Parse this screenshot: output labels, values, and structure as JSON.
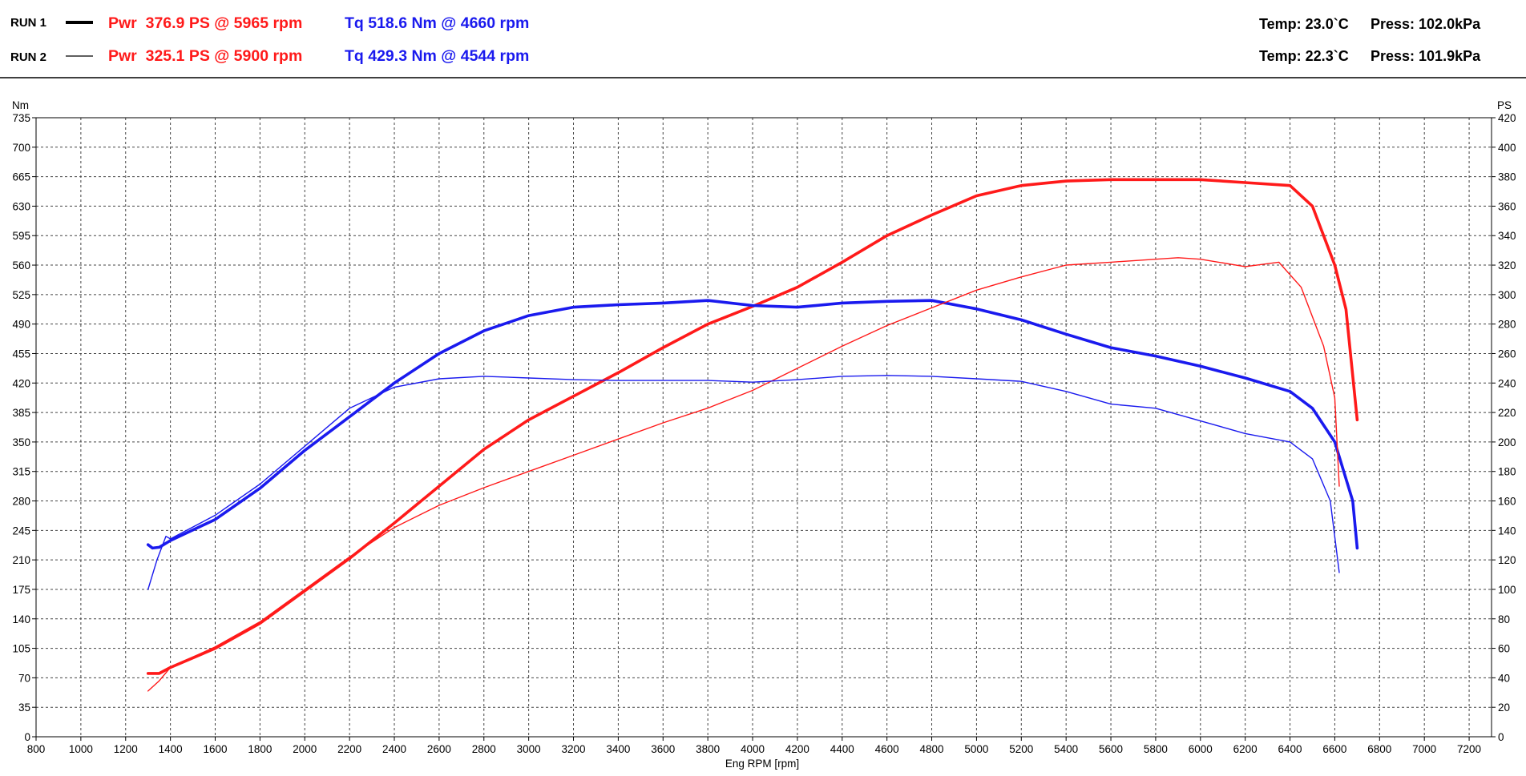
{
  "header": {
    "runs": [
      {
        "label": "RUN 1",
        "power_text": "Pwr  376.9 PS @ 5965 rpm",
        "torque_text": "Tq 518.6 Nm @ 4660 rpm",
        "temp_text": "Temp: 23.0`C",
        "press_text": "Press: 102.0kPa"
      },
      {
        "label": "RUN 2",
        "power_text": "Pwr  325.1 PS @ 5900 rpm",
        "torque_text": "Tq 429.3 Nm @ 4544 rpm",
        "temp_text": "Temp: 22.3`C",
        "press_text": "Press: 101.9kPa"
      }
    ]
  },
  "chart_data": {
    "type": "line",
    "xlabel": "Eng RPM [rpm]",
    "ylabel_left": "Nm",
    "ylabel_right": "PS",
    "xlim": [
      800,
      7300
    ],
    "ylim_left": [
      0,
      735
    ],
    "ylim_right": [
      0,
      420
    ],
    "x_ticks": [
      800,
      1000,
      1200,
      1400,
      1600,
      1800,
      2000,
      2200,
      2400,
      2600,
      2800,
      3000,
      3200,
      3400,
      3600,
      3800,
      4000,
      4200,
      4400,
      4600,
      4800,
      5000,
      5200,
      5400,
      5600,
      5800,
      6000,
      6200,
      6400,
      6600,
      6800,
      7000,
      7200
    ],
    "y_ticks_left": [
      0,
      35,
      70,
      105,
      140,
      175,
      210,
      245,
      280,
      315,
      350,
      385,
      420,
      455,
      490,
      525,
      560,
      595,
      630,
      665,
      700,
      735
    ],
    "y_ticks_right": [
      0,
      20,
      40,
      60,
      80,
      100,
      120,
      140,
      160,
      180,
      200,
      220,
      240,
      260,
      280,
      300,
      320,
      340,
      360,
      380,
      400,
      420
    ],
    "grid": true,
    "colors": {
      "power": "#ff1a1a",
      "torque": "#1a1aee"
    },
    "series": [
      {
        "name": "RUN 1",
        "quantity": "power",
        "axis": "right",
        "line": "thick",
        "points": [
          [
            1300,
            43
          ],
          [
            1350,
            43
          ],
          [
            1400,
            47
          ],
          [
            1600,
            60
          ],
          [
            1800,
            77
          ],
          [
            2000,
            99
          ],
          [
            2200,
            121
          ],
          [
            2400,
            145
          ],
          [
            2600,
            170
          ],
          [
            2800,
            195
          ],
          [
            3000,
            215
          ],
          [
            3200,
            231
          ],
          [
            3400,
            247
          ],
          [
            3600,
            264
          ],
          [
            3800,
            280
          ],
          [
            4000,
            292
          ],
          [
            4200,
            305
          ],
          [
            4400,
            322
          ],
          [
            4600,
            340
          ],
          [
            4800,
            354
          ],
          [
            5000,
            367
          ],
          [
            5200,
            374
          ],
          [
            5400,
            377
          ],
          [
            5600,
            378
          ],
          [
            5800,
            378
          ],
          [
            6000,
            378
          ],
          [
            6200,
            376
          ],
          [
            6400,
            374
          ],
          [
            6500,
            360
          ],
          [
            6600,
            320
          ],
          [
            6650,
            290
          ],
          [
            6700,
            215
          ]
        ]
      },
      {
        "name": "RUN 1",
        "quantity": "torque",
        "axis": "left",
        "line": "thick",
        "points": [
          [
            1300,
            228
          ],
          [
            1320,
            224
          ],
          [
            1350,
            225
          ],
          [
            1400,
            233
          ],
          [
            1600,
            258
          ],
          [
            1800,
            295
          ],
          [
            2000,
            340
          ],
          [
            2200,
            380
          ],
          [
            2400,
            420
          ],
          [
            2600,
            455
          ],
          [
            2800,
            482
          ],
          [
            3000,
            500
          ],
          [
            3200,
            510
          ],
          [
            3400,
            513
          ],
          [
            3600,
            515
          ],
          [
            3800,
            518
          ],
          [
            4000,
            512
          ],
          [
            4200,
            510
          ],
          [
            4400,
            515
          ],
          [
            4600,
            517
          ],
          [
            4800,
            518
          ],
          [
            5000,
            508
          ],
          [
            5200,
            495
          ],
          [
            5400,
            478
          ],
          [
            5600,
            462
          ],
          [
            5800,
            452
          ],
          [
            6000,
            440
          ],
          [
            6200,
            426
          ],
          [
            6400,
            410
          ],
          [
            6500,
            390
          ],
          [
            6600,
            350
          ],
          [
            6680,
            280
          ],
          [
            6700,
            224
          ]
        ]
      },
      {
        "name": "RUN 2",
        "quantity": "power",
        "axis": "right",
        "line": "thin",
        "points": [
          [
            1300,
            31
          ],
          [
            1350,
            38
          ],
          [
            1400,
            47
          ],
          [
            1600,
            61
          ],
          [
            1800,
            78
          ],
          [
            2000,
            100
          ],
          [
            2200,
            122
          ],
          [
            2400,
            142
          ],
          [
            2600,
            157
          ],
          [
            2800,
            169
          ],
          [
            3000,
            180
          ],
          [
            3200,
            191
          ],
          [
            3400,
            202
          ],
          [
            3600,
            213
          ],
          [
            3800,
            223
          ],
          [
            4000,
            235
          ],
          [
            4200,
            250
          ],
          [
            4400,
            265
          ],
          [
            4600,
            279
          ],
          [
            4800,
            291
          ],
          [
            5000,
            303
          ],
          [
            5200,
            312
          ],
          [
            5400,
            320
          ],
          [
            5600,
            322
          ],
          [
            5800,
            324
          ],
          [
            5900,
            325
          ],
          [
            6000,
            324
          ],
          [
            6200,
            319
          ],
          [
            6350,
            322
          ],
          [
            6450,
            305
          ],
          [
            6550,
            265
          ],
          [
            6600,
            230
          ],
          [
            6620,
            170
          ]
        ]
      },
      {
        "name": "RUN 2",
        "quantity": "torque",
        "axis": "left",
        "line": "thin",
        "points": [
          [
            1300,
            175
          ],
          [
            1340,
            210
          ],
          [
            1380,
            238
          ],
          [
            1400,
            235
          ],
          [
            1600,
            263
          ],
          [
            1800,
            300
          ],
          [
            2000,
            345
          ],
          [
            2200,
            390
          ],
          [
            2400,
            415
          ],
          [
            2600,
            425
          ],
          [
            2800,
            428
          ],
          [
            3000,
            426
          ],
          [
            3200,
            424
          ],
          [
            3400,
            423
          ],
          [
            3600,
            423
          ],
          [
            3800,
            423
          ],
          [
            4000,
            421
          ],
          [
            4200,
            424
          ],
          [
            4400,
            428
          ],
          [
            4600,
            429
          ],
          [
            4800,
            428
          ],
          [
            5000,
            425
          ],
          [
            5200,
            422
          ],
          [
            5400,
            410
          ],
          [
            5600,
            395
          ],
          [
            5800,
            390
          ],
          [
            6000,
            375
          ],
          [
            6200,
            360
          ],
          [
            6400,
            350
          ],
          [
            6500,
            330
          ],
          [
            6580,
            280
          ],
          [
            6620,
            195
          ]
        ]
      }
    ]
  }
}
